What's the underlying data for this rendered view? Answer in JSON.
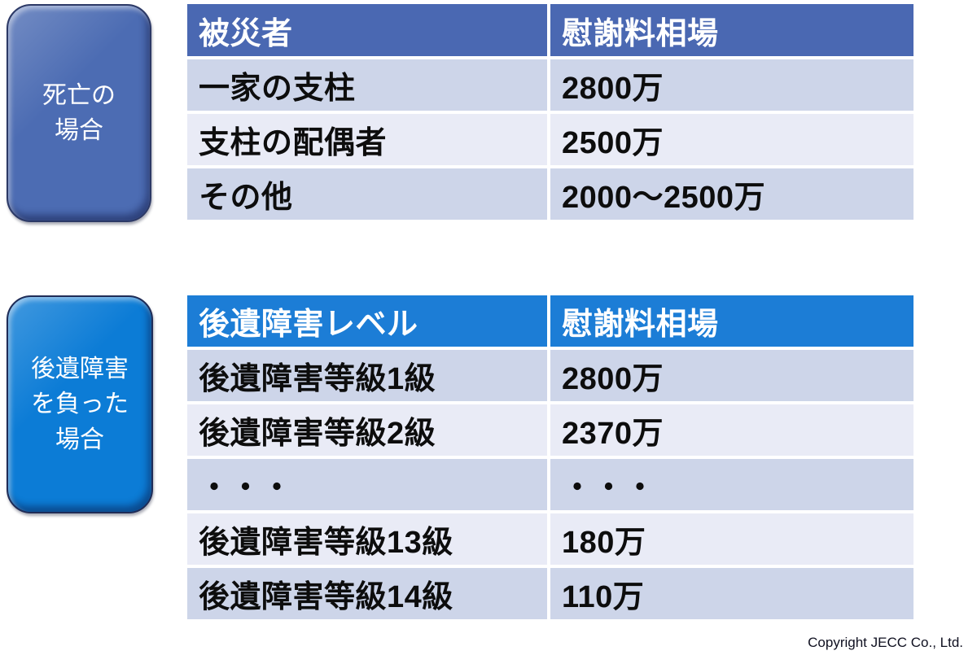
{
  "page": {
    "background": "#ffffff",
    "copyright": "Copyright JECC Co., Ltd."
  },
  "colors": {
    "badge_death_fill": "#4c6cb3",
    "badge_death_border": "#2c3966",
    "badge_disability_fill": "#0c7cd6",
    "badge_disability_border": "#1f2c57",
    "table1_header_bg": "#4a68b2",
    "table2_header_bg": "#1c7dd6",
    "row_dark": "#cdd5e9",
    "row_light": "#e9ebf6",
    "header_text": "#ffffff",
    "body_text": "#0d0d0d"
  },
  "badges": {
    "death": {
      "lines": [
        "死亡の",
        "場合"
      ]
    },
    "disability": {
      "lines": [
        "後遺障害",
        "を負った",
        "場合"
      ]
    }
  },
  "tables": {
    "death": {
      "columns": [
        "被災者",
        "慰謝料相場"
      ],
      "rows": [
        [
          "一家の支柱",
          "2800万"
        ],
        [
          "支柱の配偶者",
          "2500万"
        ],
        [
          "その他",
          "2000～2500万"
        ]
      ]
    },
    "disability": {
      "columns": [
        "後遺障害レベル",
        "慰謝料相場"
      ],
      "rows": [
        [
          "後遺障害等級1級",
          "2800万"
        ],
        [
          "後遺障害等級2級",
          "2370万"
        ],
        [
          "・・・",
          "・・・"
        ],
        [
          "後遺障害等級13級",
          "180万"
        ],
        [
          "後遺障害等級14級",
          "110万"
        ]
      ]
    }
  }
}
